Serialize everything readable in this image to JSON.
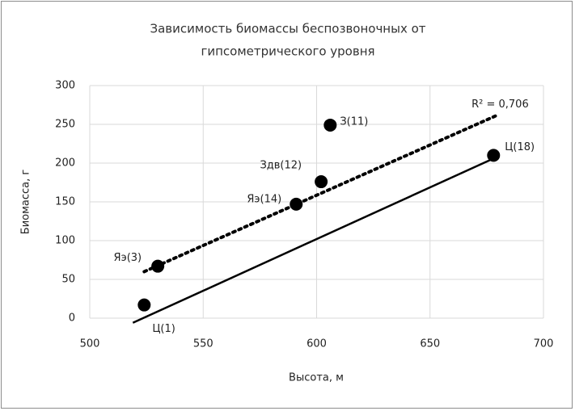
{
  "chart_data": {
    "type": "scatter",
    "title": [
      "Зависимость биомассы беспозвоночных от",
      "гипсометрического уровня"
    ],
    "x_label": "Высота, м",
    "y_label": "Биомасса, г",
    "x": [
      524,
      530,
      591,
      602,
      606,
      678
    ],
    "values": [
      17,
      67,
      147,
      176,
      249,
      210
    ],
    "labels": [
      "Ц(1)",
      "Яэ(3)",
      "Яэ(14)",
      "Здв(12)",
      "З(11)",
      "Ц(18)"
    ],
    "color": "#000000",
    "trendlines": [
      {
        "style": "dotted",
        "x": [
          524,
          679
        ],
        "y": [
          60,
          261
        ]
      },
      {
        "style": "solid",
        "x": [
          519,
          678
        ],
        "y": [
          -6,
          206
        ]
      }
    ],
    "annotation": "R² = 0,706",
    "xlim": [
      500,
      700
    ],
    "xticks": [
      500,
      550,
      600,
      650,
      700
    ],
    "ylim": [
      0,
      300
    ],
    "yticks": [
      0,
      50,
      100,
      150,
      200,
      250,
      300
    ],
    "grid": true
  }
}
